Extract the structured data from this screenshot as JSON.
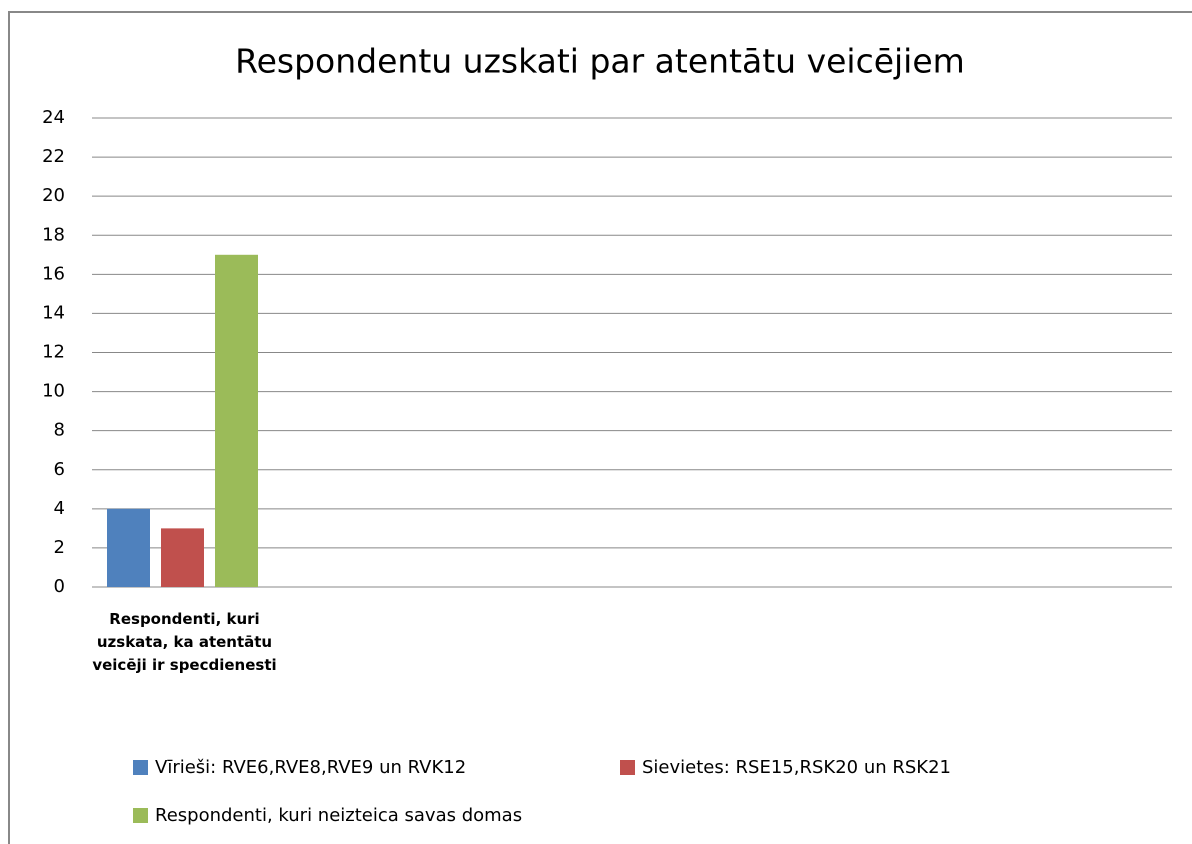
{
  "chart_data": {
    "type": "bar",
    "title": "Respondentu uzskati par atentātu veicējiem",
    "categories": [
      "Respondenti, kuri uzskata, ka atentātu veicēji ir specdienesti"
    ],
    "series": [
      {
        "name": "Vīrieši: RVE6,RVE8,RVE9 un RVK12",
        "color": "#4f81bd",
        "values": [
          4
        ]
      },
      {
        "name": "Sievietes: RSE15,RSK20 un RSK21",
        "color": "#c0504d",
        "values": [
          3
        ]
      },
      {
        "name": "Respondenti, kuri neizteica savas domas",
        "color": "#9bbb59",
        "values": [
          17
        ]
      }
    ],
    "ylim": [
      0,
      24
    ],
    "yticks": [
      0,
      2,
      4,
      6,
      8,
      10,
      12,
      14,
      16,
      18,
      20,
      22,
      24
    ],
    "grid": true
  }
}
